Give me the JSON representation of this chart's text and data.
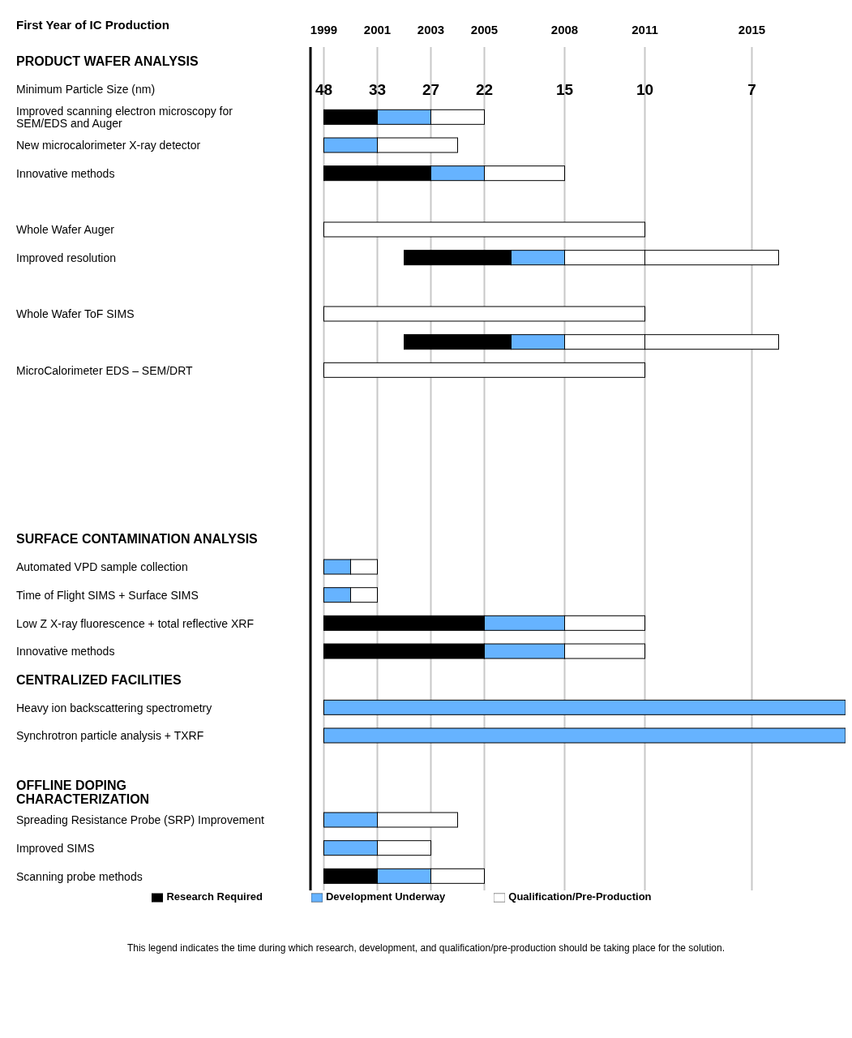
{
  "chart_data": {
    "type": "bar",
    "orientation": "horizontal",
    "xlabel": "First Year of IC Production",
    "categories": [
      "PRODUCT WAFER ANALYSIS",
      "Minimum Particle Size (nm)",
      "Improved scanning electron microscopy for SEM/EDS and Auger",
      "New microcalorimeter X-ray detector",
      "Innovative methods",
      null,
      "Whole Wafer Auger",
      "Improved resolution",
      null,
      "Whole Wafer ToF SIMS",
      null,
      "MicroCalorimeter EDS – SEM/DRT",
      null,
      null,
      null,
      null,
      null,
      "SURFACE CONTAMINATION ANALYSIS",
      "Automated VPD sample collection",
      "Time of Flight SIMS + Surface SIMS",
      "Low Z X-ray fluorescence +  total reflective XRF",
      "Innovative methods",
      "CENTRALIZED FACILITIES",
      "Heavy ion backscattering spectrometry",
      "Synchrotron particle analysis + TXRF",
      null,
      "OFFLINE DOPING CHARACTERIZATION",
      "Spreading Resistance Probe (SRP) Improvement",
      "Improved SIMS",
      "Scanning probe methods"
    ],
    "series": [
      {
        "name": "Research Required",
        "color": "#000000",
        "base": [
          null,
          null,
          1999,
          null,
          1999,
          null,
          null,
          2002,
          null,
          null,
          2002,
          null,
          null,
          null,
          null,
          null,
          null,
          null,
          null,
          null,
          1999,
          1999,
          null,
          null,
          null,
          null,
          null,
          null,
          null,
          1999
        ],
        "values": [
          null,
          null,
          2,
          null,
          4,
          null,
          null,
          4,
          null,
          null,
          4,
          null,
          null,
          null,
          null,
          null,
          null,
          null,
          null,
          null,
          6,
          6,
          null,
          null,
          null,
          null,
          null,
          null,
          null,
          2
        ]
      },
      {
        "name": "Development Underway",
        "color": "#66b3ff",
        "base": [
          null,
          null,
          2001,
          1999,
          2003,
          null,
          null,
          2006,
          null,
          null,
          2006,
          null,
          null,
          null,
          null,
          null,
          null,
          null,
          1999,
          1999,
          2005,
          2005,
          null,
          1999,
          1999,
          null,
          null,
          1999,
          1999,
          2001
        ],
        "values": [
          null,
          null,
          2,
          2,
          2,
          null,
          null,
          2,
          null,
          null,
          2,
          null,
          null,
          null,
          null,
          null,
          null,
          null,
          1,
          1,
          3,
          3,
          null,
          19.5,
          19.5,
          null,
          null,
          2,
          2,
          2
        ]
      },
      {
        "name": "Qualification/Pre-Production",
        "color": "#ffffff",
        "base": [
          null,
          null,
          2003,
          2001,
          2005,
          null,
          1999,
          2008,
          null,
          1999,
          2008,
          1999,
          null,
          null,
          null,
          null,
          null,
          null,
          2000,
          2000,
          2008,
          2008,
          null,
          null,
          null,
          null,
          null,
          2001,
          2001,
          2003
        ],
        "values": [
          null,
          null,
          2,
          3,
          3,
          null,
          12,
          3,
          null,
          12,
          3,
          12,
          null,
          null,
          null,
          null,
          null,
          null,
          1,
          1,
          3,
          3,
          null,
          null,
          null,
          null,
          null,
          3,
          2,
          2
        ]
      },
      {
        "color": "#ffffff",
        "base": [
          null,
          null,
          null,
          null,
          null,
          null,
          null,
          2011,
          null,
          null,
          2011,
          null,
          null,
          null,
          null,
          null,
          null,
          null,
          null,
          null,
          null,
          null,
          null,
          null,
          null,
          null,
          null,
          null,
          null,
          null
        ],
        "values": [
          null,
          null,
          null,
          null,
          null,
          null,
          null,
          5,
          null,
          null,
          5,
          null,
          null,
          null,
          null,
          null,
          null,
          null,
          null,
          null,
          null,
          null,
          null,
          null,
          null,
          null,
          null,
          null,
          null,
          null
        ]
      }
    ],
    "xlim": [
      1998.5,
      2018.5
    ],
    "xticks": [
      1999,
      2001,
      2003,
      2005,
      2008,
      2011,
      2015
    ],
    "grid": "x",
    "legend": "bottom",
    "annotations": [
      "48",
      "33",
      "27",
      "22",
      "15",
      "10",
      "7",
      "This legend indicates the time during which research, development, and qualification/pre-production should be taking place for the solution."
    ]
  }
}
